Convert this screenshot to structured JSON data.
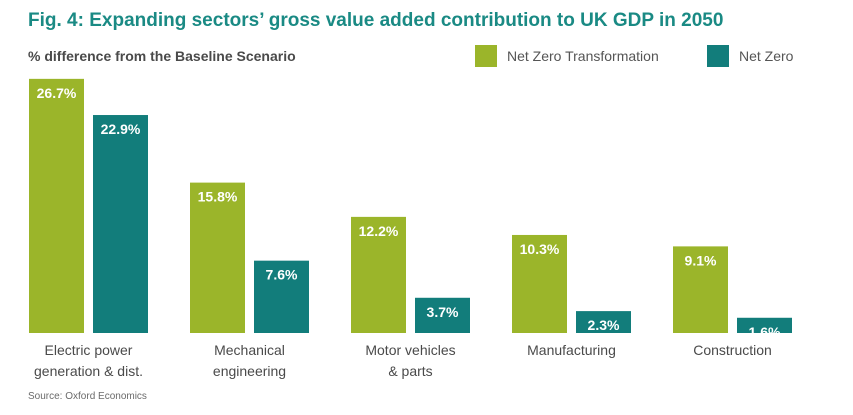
{
  "header": {
    "title": "Fig. 4: Expanding sectors’ gross value added contribution to UK GDP in 2050",
    "subtitle": "% difference from the Baseline Scenario"
  },
  "footer": {
    "source": "Source: Oxford Economics"
  },
  "colors": {
    "title": "#1a8a84",
    "net_zero_transformation": "#9bb52a",
    "net_zero": "#127d7b"
  },
  "chart_data": {
    "type": "bar",
    "title": "Fig. 4: Expanding sectors’ gross value added contribution to UK GDP in 2050",
    "ylabel": "% difference from the Baseline Scenario",
    "ylim": [
      0,
      27
    ],
    "grid": false,
    "legend_position": "top-right",
    "categories": [
      [
        "Electric power",
        "generation & dist."
      ],
      [
        "Mechanical",
        "engineering"
      ],
      [
        "Motor vehicles",
        "& parts"
      ],
      [
        "Manufacturing"
      ],
      [
        "Construction"
      ]
    ],
    "series": [
      {
        "name": "Net Zero Transformation",
        "color": "#9bb52a",
        "values": [
          26.7,
          15.8,
          12.2,
          10.3,
          9.1
        ]
      },
      {
        "name": "Net Zero",
        "color": "#127d7b",
        "values": [
          22.9,
          7.6,
          3.7,
          2.3,
          1.6
        ]
      }
    ]
  }
}
